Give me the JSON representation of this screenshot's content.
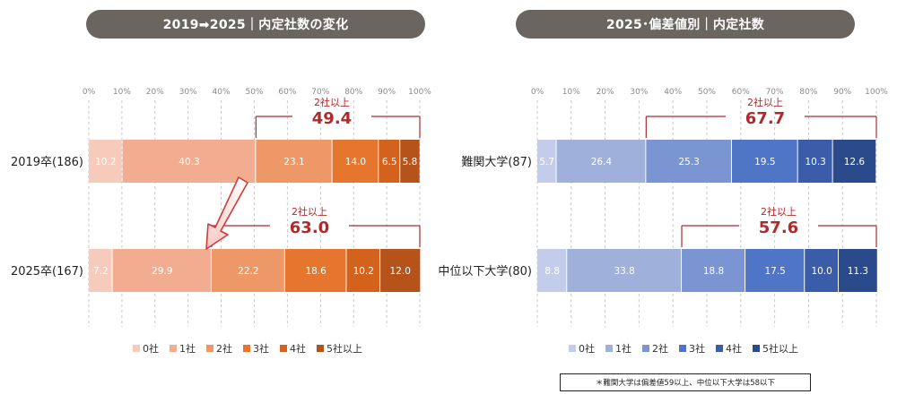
{
  "left_panel": {
    "title": "2019➡2025｜内定社数の変化"
  },
  "right_panel": {
    "title": "2025･偏差値別｜内定社数"
  },
  "axis_ticks": [
    "0%",
    "10%",
    "20%",
    "30%",
    "40%",
    "50%",
    "60%",
    "70%",
    "80%",
    "90%",
    "100%"
  ],
  "bracket_label": "2社以上",
  "legend_labels": [
    "0社",
    "1社",
    "2社",
    "3社",
    "4社",
    "5社以上"
  ],
  "footnote": "＊難関大学は偏差値59以上、中位以下大学は58以下",
  "colors": {
    "orange": [
      "#f6cbbb",
      "#f2ad90",
      "#ee9868",
      "#e6762e",
      "#d3621d",
      "#b6531a"
    ],
    "blue": [
      "#c3ccea",
      "#9fb1db",
      "#7a95d2",
      "#4f75c7",
      "#3b5ca8",
      "#2b4a8b"
    ],
    "bracket": "#b02a2a"
  },
  "chart_data": [
    {
      "type": "bar",
      "orientation": "horizontal-stacked-100",
      "title": "2019➡2025｜内定社数の変化",
      "categories": [
        "2019卒(186)",
        "2025卒(167)"
      ],
      "series": [
        {
          "name": "0社",
          "values": [
            10.2,
            7.2
          ]
        },
        {
          "name": "1社",
          "values": [
            40.3,
            29.9
          ]
        },
        {
          "name": "2社",
          "values": [
            23.1,
            22.2
          ]
        },
        {
          "name": "3社",
          "values": [
            14.0,
            18.6
          ]
        },
        {
          "name": "4社",
          "values": [
            6.5,
            10.2
          ]
        },
        {
          "name": "5社以上",
          "values": [
            5.8,
            12.0
          ]
        }
      ],
      "annotations": [
        {
          "label": "2社以上",
          "value": "49.4",
          "category": "2019卒(186)"
        },
        {
          "label": "2社以上",
          "value": "63.0",
          "category": "2025卒(167)"
        }
      ],
      "xlim": [
        0,
        100
      ],
      "legend": "bottom"
    },
    {
      "type": "bar",
      "orientation": "horizontal-stacked-100",
      "title": "2025･偏差値別｜内定社数",
      "categories": [
        "難関大学(87)",
        "中位以下大学(80)"
      ],
      "series": [
        {
          "name": "0社",
          "values": [
            5.7,
            8.8
          ]
        },
        {
          "name": "1社",
          "values": [
            26.4,
            33.8
          ]
        },
        {
          "name": "2社",
          "values": [
            25.3,
            18.8
          ]
        },
        {
          "name": "3社",
          "values": [
            19.5,
            17.5
          ]
        },
        {
          "name": "4社",
          "values": [
            10.3,
            10.0
          ]
        },
        {
          "name": "5社以上",
          "values": [
            12.6,
            11.3
          ]
        }
      ],
      "annotations": [
        {
          "label": "2社以上",
          "value": "67.7",
          "category": "難関大学(87)"
        },
        {
          "label": "2社以上",
          "value": "57.6",
          "category": "中位以下大学(80)"
        }
      ],
      "xlim": [
        0,
        100
      ],
      "legend": "bottom"
    }
  ]
}
